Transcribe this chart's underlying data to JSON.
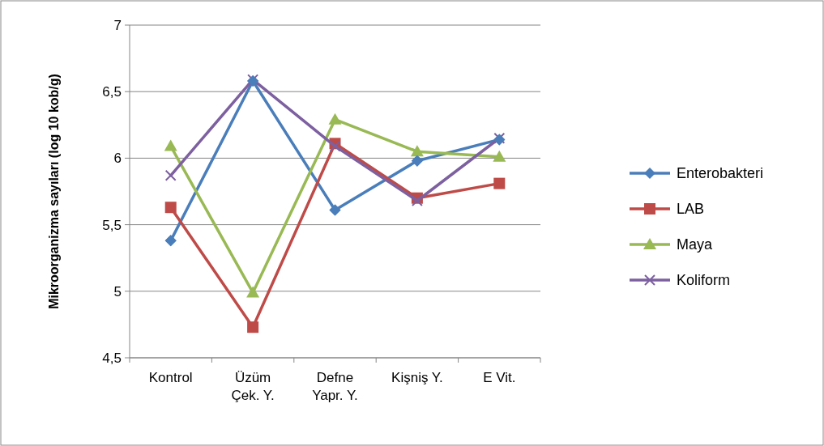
{
  "chart_data": {
    "type": "line",
    "ylabel": "Mikroorganizma sayıları (log 10 kob/g)",
    "categories": [
      "Kontrol",
      "Üzüm Çek. Y.",
      "Defne Yapr. Y.",
      "Kişniş Y.",
      "E Vit."
    ],
    "series": [
      {
        "name": "Enterobakteri",
        "color": "#4a7ebb",
        "marker": "diamond",
        "values": [
          5.38,
          6.58,
          5.61,
          5.98,
          6.14
        ]
      },
      {
        "name": "LAB",
        "color": "#be4b48",
        "marker": "square",
        "values": [
          5.63,
          4.73,
          6.11,
          5.7,
          5.81
        ]
      },
      {
        "name": "Maya",
        "color": "#98b954",
        "marker": "triangle",
        "values": [
          6.09,
          4.99,
          6.29,
          6.05,
          6.01
        ]
      },
      {
        "name": "Koliform",
        "color": "#7d60a0",
        "marker": "cross",
        "values": [
          5.87,
          6.59,
          6.09,
          5.68,
          6.15
        ]
      }
    ],
    "ylim": [
      4.5,
      7
    ],
    "yticks": [
      {
        "value": 4.5,
        "label": "4,5"
      },
      {
        "value": 5,
        "label": "5"
      },
      {
        "value": 5.5,
        "label": "5,5"
      },
      {
        "value": 6,
        "label": "6"
      },
      {
        "value": 6.5,
        "label": "6,5"
      },
      {
        "value": 7,
        "label": "7"
      }
    ],
    "grid": "y",
    "legend": "right"
  }
}
